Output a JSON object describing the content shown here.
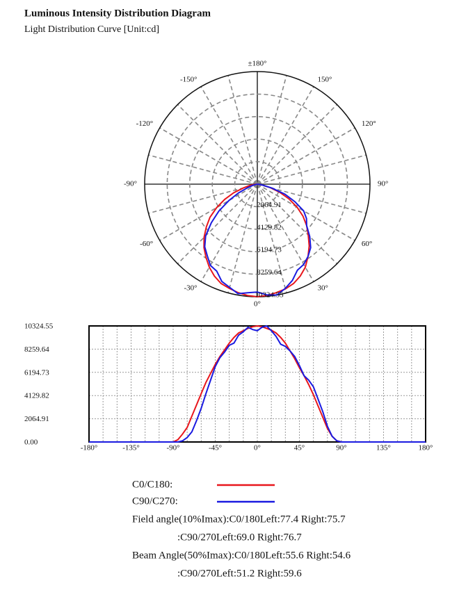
{
  "chart_data": [
    {
      "type": "polar",
      "title": "Luminous Intensity Distribution Diagram",
      "subtitle": "Light Distribution Curve [Unit:cd]",
      "theta": [
        -180,
        -135,
        -90,
        -85,
        -80,
        -75,
        -70,
        -65,
        -60,
        -55,
        -50,
        -45,
        -40,
        -35,
        -30,
        -25,
        -20,
        -15,
        -10,
        -5,
        0,
        5,
        10,
        15,
        20,
        25,
        30,
        35,
        40,
        45,
        50,
        55,
        60,
        65,
        70,
        75,
        80,
        85,
        90,
        135,
        180
      ],
      "rlim": [
        0,
        10324.55
      ],
      "rticks": [
        2064.91,
        4129.82,
        6194.73,
        8259.64,
        10324.55
      ],
      "thetaticks": [
        {
          "value": 180,
          "label": "±180°"
        },
        {
          "value": 150,
          "label": "150°"
        },
        {
          "value": 120,
          "label": "120°"
        },
        {
          "value": 90,
          "label": "90°"
        },
        {
          "value": 60,
          "label": "60°"
        },
        {
          "value": 30,
          "label": "30°"
        },
        {
          "value": 0,
          "label": "0°"
        },
        {
          "value": -30,
          "label": "-30°"
        },
        {
          "value": -60,
          "label": "-60°"
        },
        {
          "value": -90,
          "label": "-90°"
        },
        {
          "value": -120,
          "label": "-120°"
        },
        {
          "value": -150,
          "label": "-150°"
        }
      ],
      "series": [
        {
          "name": "C0/C180:",
          "color": "#e8161c",
          "values": [
            0,
            0,
            0,
            200,
            700,
            1300,
            2300,
            3300,
            4300,
            5300,
            6100,
            6900,
            7600,
            8200,
            8800,
            9300,
            9700,
            9900,
            10100,
            10250,
            10324.55,
            10250,
            10100,
            9950,
            9700,
            9300,
            8800,
            8100,
            7400,
            6600,
            5900,
            5100,
            4200,
            3200,
            2200,
            1200,
            500,
            100,
            0,
            0,
            0
          ]
        },
        {
          "name": "C90/C270:",
          "color": "#1a1ae0",
          "values": [
            0,
            0,
            0,
            0,
            100,
            400,
            900,
            1900,
            3000,
            4300,
            5500,
            6700,
            7500,
            8000,
            8600,
            8800,
            9500,
            9800,
            10200,
            10000,
            9900,
            10200,
            10324.55,
            9900,
            9400,
            8700,
            8500,
            8100,
            7600,
            6800,
            5900,
            5500,
            4900,
            3800,
            2700,
            1400,
            500,
            100,
            0,
            0,
            0
          ]
        }
      ]
    },
    {
      "type": "line",
      "x": [
        -180,
        -135,
        -90,
        -85,
        -80,
        -75,
        -70,
        -65,
        -60,
        -55,
        -50,
        -45,
        -40,
        -35,
        -30,
        -25,
        -20,
        -15,
        -10,
        -5,
        0,
        5,
        10,
        15,
        20,
        25,
        30,
        35,
        40,
        45,
        50,
        55,
        60,
        65,
        70,
        75,
        80,
        85,
        90,
        135,
        180
      ],
      "xlim": [
        -180,
        180
      ],
      "xticks": [
        {
          "value": -180,
          "label": "-180°"
        },
        {
          "value": -135,
          "label": "-135°"
        },
        {
          "value": -90,
          "label": "-90°"
        },
        {
          "value": -45,
          "label": "-45°"
        },
        {
          "value": 0,
          "label": "0°"
        },
        {
          "value": 45,
          "label": "45°"
        },
        {
          "value": 90,
          "label": "90°"
        },
        {
          "value": 135,
          "label": "135°"
        },
        {
          "value": 180,
          "label": "180°"
        }
      ],
      "ylim": [
        0,
        10324.55
      ],
      "yticks": [
        {
          "value": 0,
          "label": "0.00"
        },
        2064.91,
        4129.82,
        6194.73,
        8259.64,
        10324.55
      ],
      "grid": true,
      "series": [
        {
          "name": "C0/C180:",
          "color": "#e8161c",
          "values": [
            0,
            0,
            0,
            200,
            700,
            1300,
            2300,
            3300,
            4300,
            5300,
            6100,
            6900,
            7600,
            8200,
            8800,
            9300,
            9700,
            9900,
            10100,
            10250,
            10324.55,
            10250,
            10100,
            9950,
            9700,
            9300,
            8800,
            8100,
            7400,
            6600,
            5900,
            5100,
            4200,
            3200,
            2200,
            1200,
            500,
            100,
            0,
            0,
            0
          ]
        },
        {
          "name": "C90/C270:",
          "color": "#1a1ae0",
          "values": [
            0,
            0,
            0,
            0,
            100,
            400,
            900,
            1900,
            3000,
            4300,
            5500,
            6700,
            7500,
            8000,
            8600,
            8800,
            9500,
            9800,
            10200,
            10000,
            9900,
            10200,
            10324.55,
            9900,
            9400,
            8700,
            8500,
            8100,
            7600,
            6800,
            5900,
            5500,
            4900,
            3800,
            2700,
            1400,
            500,
            100,
            0,
            0,
            0
          ]
        }
      ],
      "annotations": [
        "Field angle(10%Imax):C0/180Left:77.4 Right:75.7",
        ":C90/270Left:69.0 Right:76.7",
        "Beam Angle(50%Imax):C0/180Left:55.6 Right:54.6",
        ":C90/270Left:51.2 Right:59.6"
      ]
    }
  ]
}
